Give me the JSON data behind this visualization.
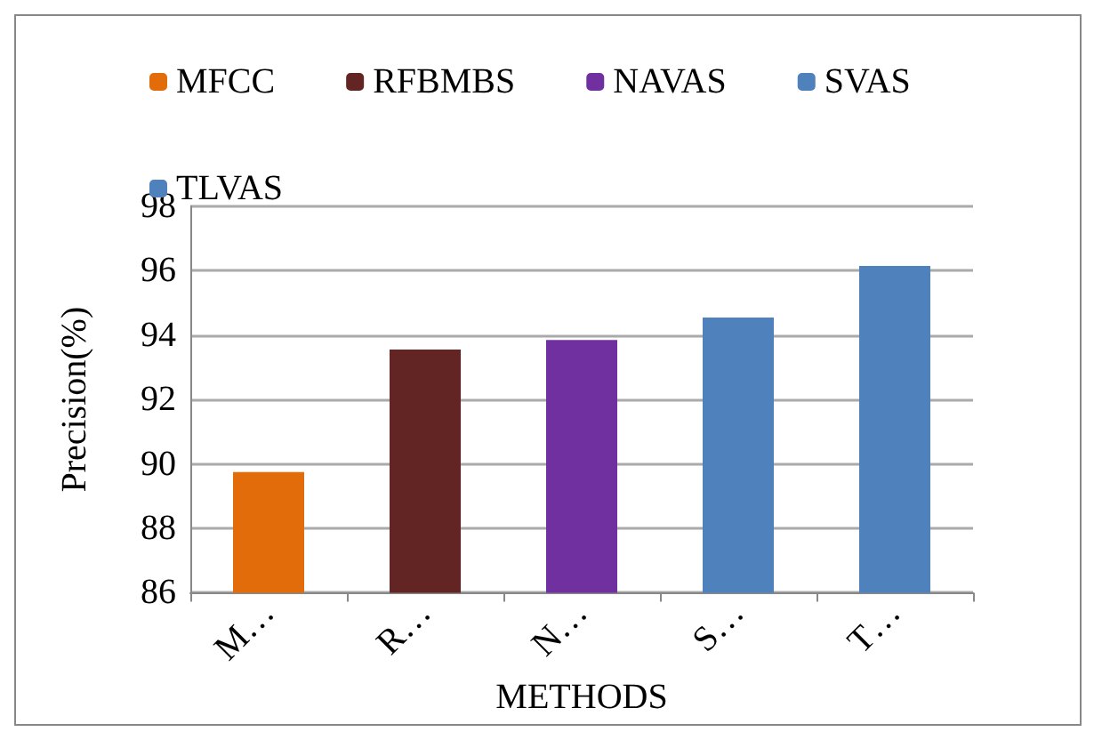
{
  "chart_data": {
    "type": "bar",
    "xlabel": "METHODS",
    "ylabel": "Precision(%)",
    "categories": [
      "M…",
      "R…",
      "N…",
      "S…",
      "T…"
    ],
    "series": [
      {
        "name": "MFCC",
        "color": "#e36c0a",
        "values": [
          89.75,
          null,
          null,
          null,
          null
        ]
      },
      {
        "name": "RFBMBS",
        "color": "#632523",
        "values": [
          null,
          93.55,
          null,
          null,
          null
        ]
      },
      {
        "name": "NAVAS",
        "color": "#7030a0",
        "values": [
          null,
          null,
          93.85,
          null,
          null
        ]
      },
      {
        "name": "SVAS",
        "color": "#4f81bd",
        "values": [
          null,
          null,
          null,
          94.55,
          null
        ]
      },
      {
        "name": "TLVAS",
        "color": "#4f81bd",
        "values": [
          null,
          null,
          null,
          null,
          96.15
        ]
      }
    ],
    "ylim": [
      86,
      98
    ],
    "yticks": [
      86,
      88,
      90,
      92,
      94,
      96,
      98
    ],
    "grid": "y",
    "legend": "top"
  }
}
